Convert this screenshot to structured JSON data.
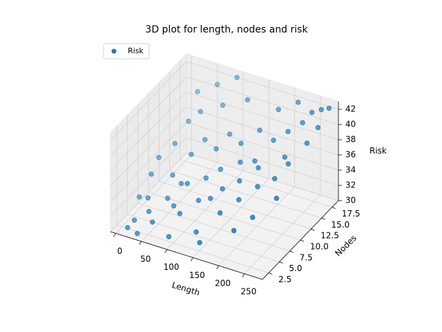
{
  "chart_data": {
    "type": "scatter3d",
    "title": "3D plot for length, nodes and risk",
    "xlabel": "Length",
    "ylabel": "Nodes",
    "zlabel": "Risk",
    "xlim": [
      -10,
      285
    ],
    "ylim": [
      1,
      19
    ],
    "zlim": [
      30,
      43
    ],
    "xticks": [
      0,
      50,
      100,
      150,
      200,
      250
    ],
    "yticks": [
      2.5,
      {
        "value": 5,
        "label": "5.0"
      },
      7.5,
      {
        "value": 10,
        "label": "10.0"
      },
      12.5,
      {
        "value": 15,
        "label": "15.0"
      },
      17.5
    ],
    "zticks": [
      30,
      32,
      34,
      36,
      38,
      40,
      42
    ],
    "grid": true,
    "legend": "upper left",
    "series": [
      {
        "name": "Risk",
        "color": "#1f77b4",
        "x": [
          20,
          30,
          15,
          40,
          55,
          60,
          70,
          80,
          90,
          100,
          110,
          120,
          130,
          140,
          150,
          160,
          170,
          180,
          190,
          200,
          210,
          220,
          230,
          240,
          250,
          260,
          270,
          10,
          25,
          35,
          45,
          50,
          65,
          75,
          85,
          95,
          105,
          115,
          125,
          135,
          145,
          155,
          165,
          175,
          185,
          195,
          205,
          215,
          225,
          235,
          245,
          255,
          265,
          275,
          5,
          12,
          28,
          58,
          88,
          38
        ],
        "y": [
          3,
          5,
          2,
          4,
          3,
          6,
          8,
          5,
          7,
          4,
          9,
          6,
          10,
          3,
          8,
          11,
          5,
          12,
          7,
          14,
          9,
          15,
          13,
          16,
          17,
          18,
          16,
          10,
          12,
          14,
          9,
          15,
          11,
          13,
          16,
          2,
          12,
          14,
          17,
          7,
          13,
          2,
          15,
          9,
          17,
          11,
          4,
          18,
          6,
          10,
          12,
          8,
          14,
          18,
          6,
          8,
          17,
          18,
          19,
          1.5
        ],
        "z": [
          31,
          33,
          30.5,
          32,
          31.5,
          33,
          34,
          33,
          35,
          33,
          35,
          34,
          36,
          32,
          35,
          37,
          34,
          37,
          35,
          39,
          36,
          40,
          38,
          41,
          42,
          42,
          41,
          35,
          36,
          38,
          34,
          39,
          36,
          37,
          40,
          31,
          37,
          38,
          41,
          34,
          38,
          31.5,
          39,
          36,
          41,
          37,
          33,
          42,
          34,
          37,
          38,
          36,
          40,
          42.5,
          32,
          34,
          40,
          41,
          42,
          30.5
        ]
      }
    ]
  }
}
